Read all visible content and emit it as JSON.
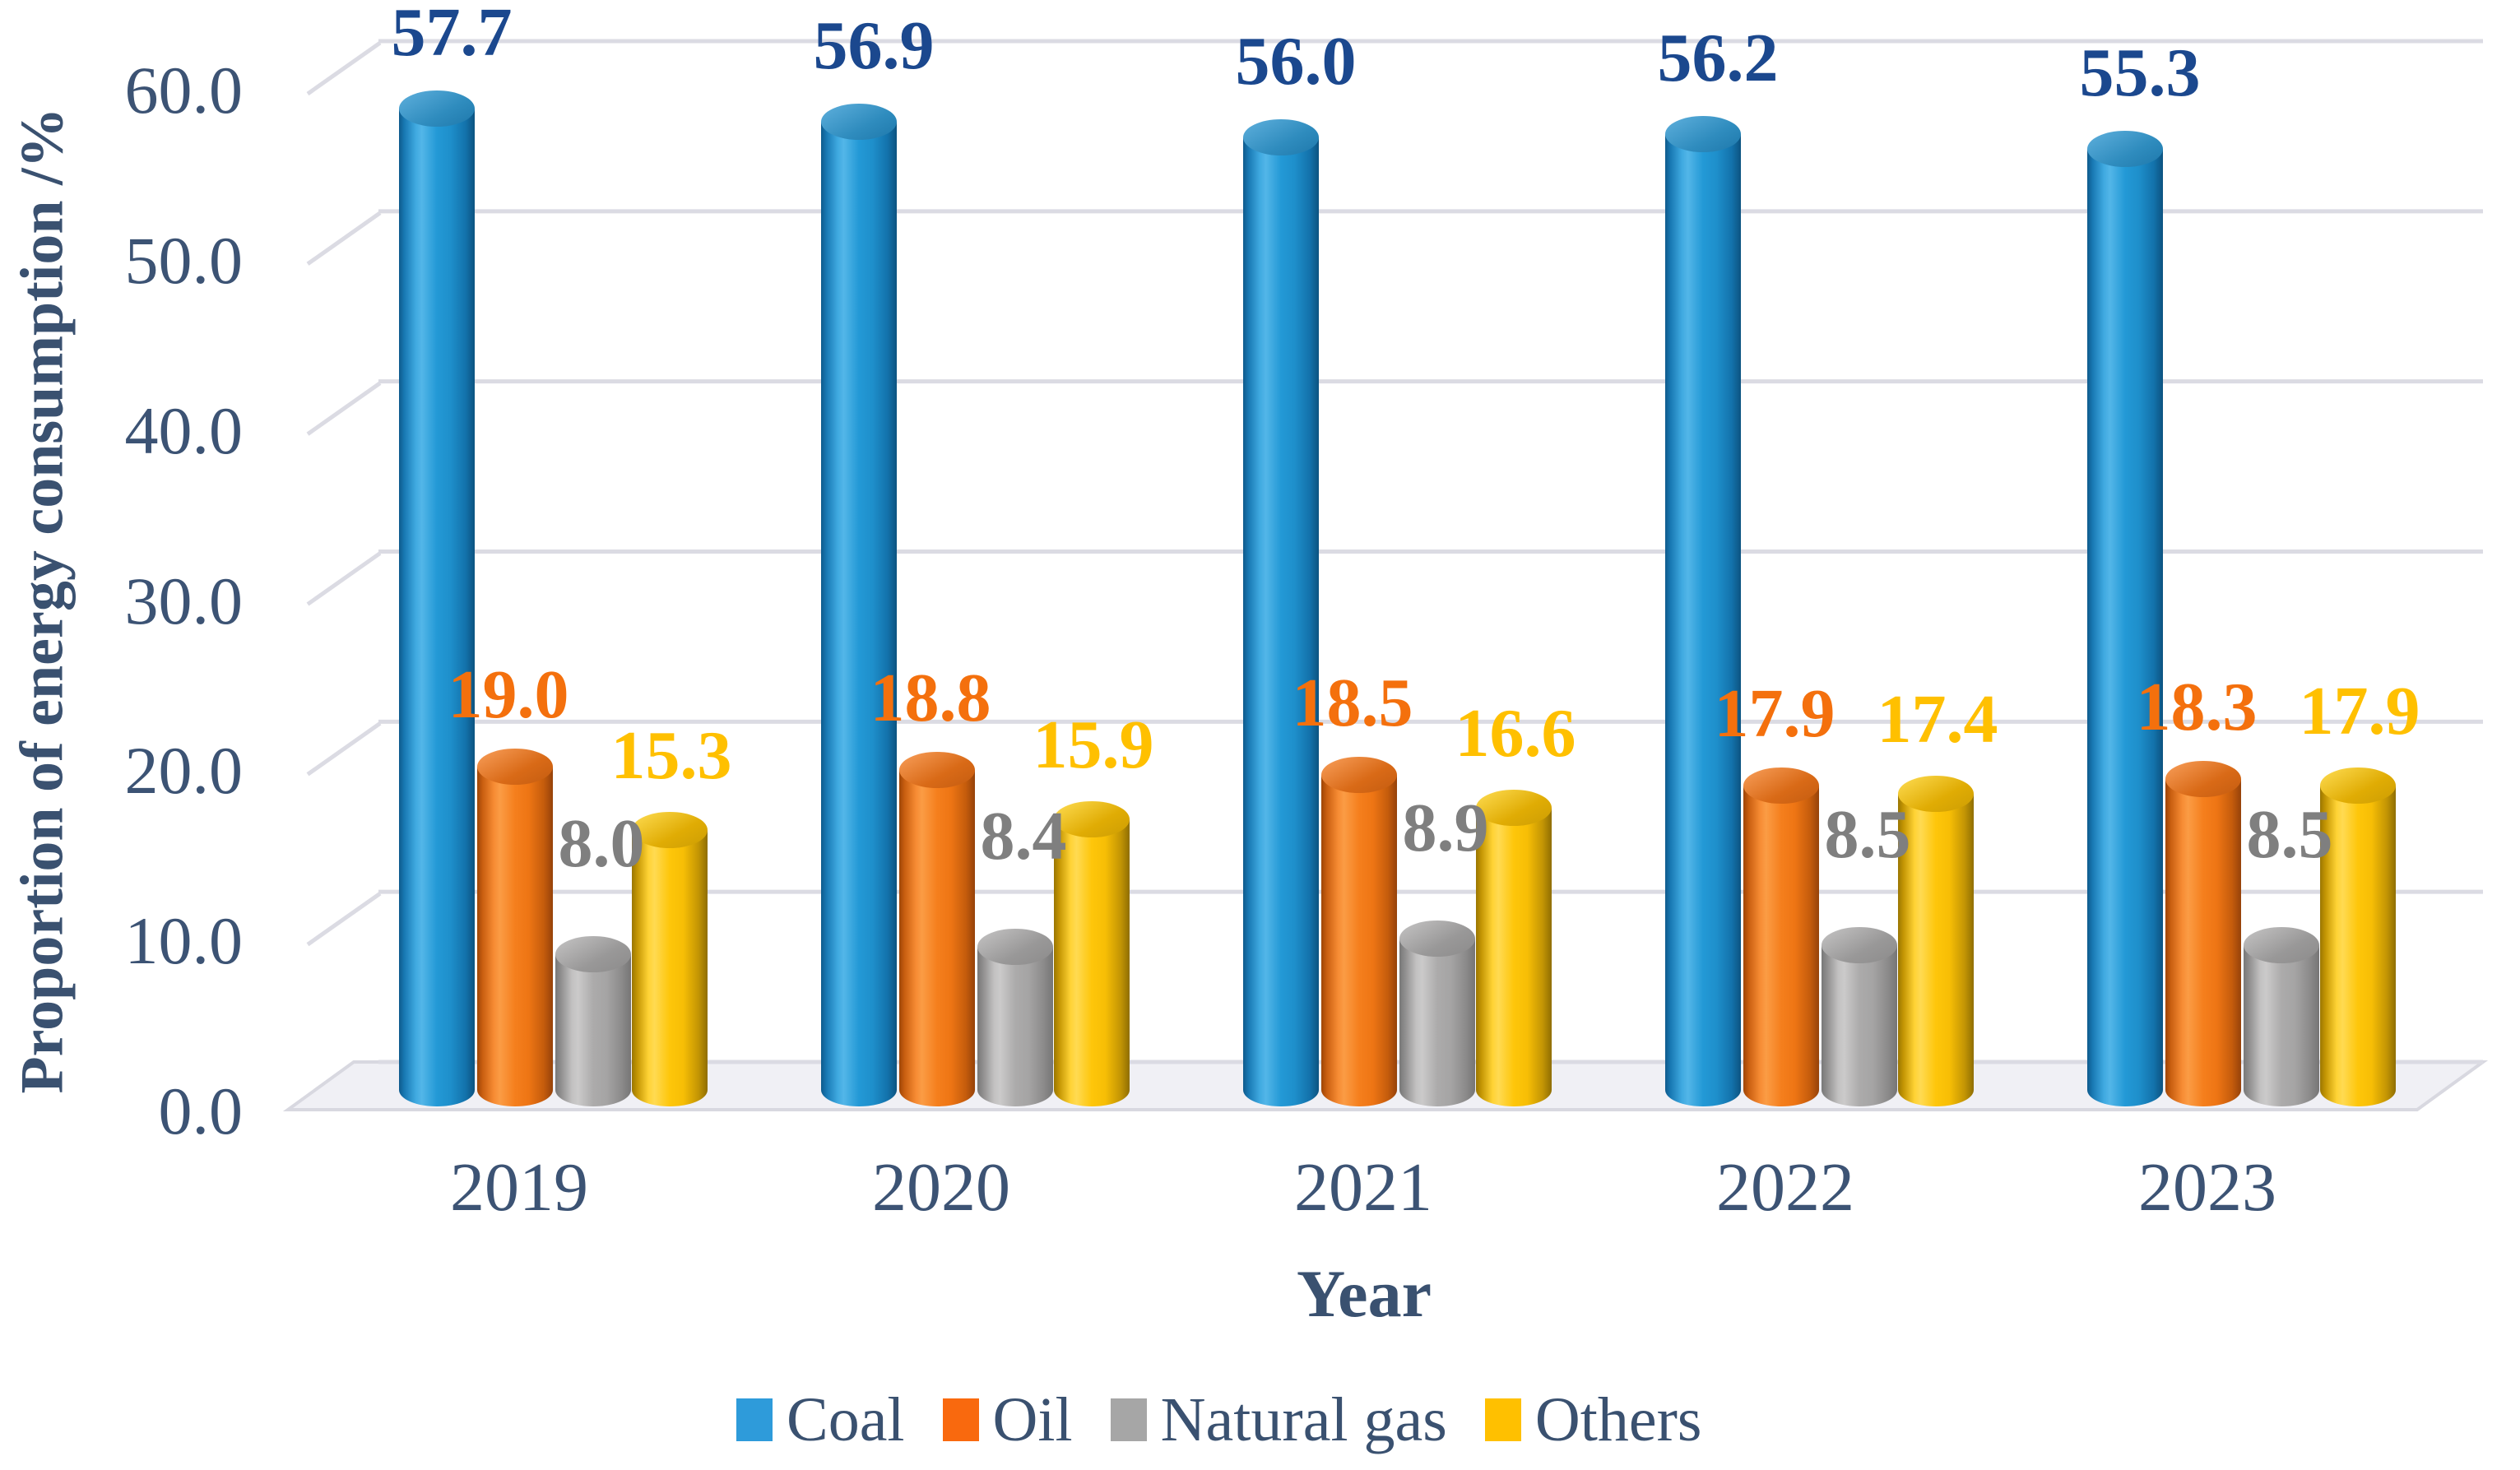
{
  "chart_data": {
    "type": "bar",
    "subtype": "3d-cylinder",
    "title": "",
    "categories": [
      "2019",
      "2020",
      "2021",
      "2022",
      "2023"
    ],
    "series": [
      {
        "name": "Coal",
        "values": [
          57.7,
          56.9,
          56.0,
          56.2,
          55.3
        ],
        "color": "#2E9BDA",
        "label_color": "#1B488E"
      },
      {
        "name": "Oil",
        "values": [
          19.0,
          18.8,
          18.5,
          17.9,
          18.3
        ],
        "color": "#F9690E",
        "label_color": "#F4700D"
      },
      {
        "name": "Natural gas",
        "values": [
          8.0,
          8.4,
          8.9,
          8.5,
          8.5
        ],
        "color": "#A6A6A6",
        "label_color": "#7F7F7F"
      },
      {
        "name": "Others",
        "values": [
          15.3,
          15.9,
          16.6,
          17.4,
          17.9
        ],
        "color": "#FFC000",
        "label_color": "#FFC000"
      }
    ],
    "xlabel": "Year",
    "ylabel": "Proportion of energy consumption /%",
    "ylim": [
      0,
      60
    ],
    "ytick_step": 10,
    "yticks": [
      "0.0",
      "10.0",
      "20.0",
      "30.0",
      "40.0",
      "50.0",
      "60.0"
    ],
    "grid": true,
    "legend_position": "bottom",
    "value_label_decimals": 1
  },
  "style_colors": {
    "axis_text": "#3C5374",
    "grid_line": "#DBDBE3",
    "floor_fill": "#F0F0F5",
    "floor_edge": "#D8D8E0",
    "background": "#FFFFFF"
  }
}
